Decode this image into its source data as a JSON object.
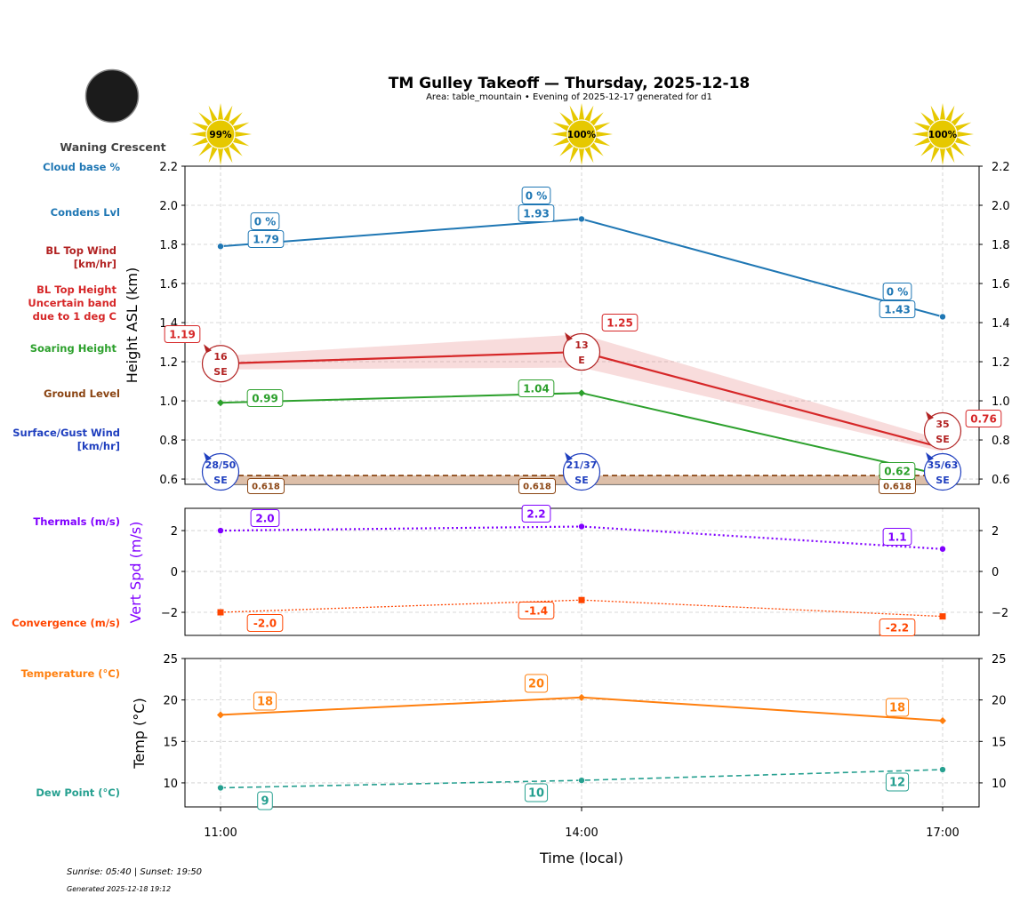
{
  "header": {
    "title": "TM Gulley Takeoff — Thursday, 2025-12-18",
    "subtitle": "Area: table_mountain • Evening of 2025-12-17 generated for d1"
  },
  "moon": {
    "phase": "Waning Crescent",
    "icon": "moon-icon"
  },
  "sun": {
    "icon": "sun-icon",
    "values": [
      "99%",
      "100%",
      "100%"
    ],
    "color": "#e6c800"
  },
  "side_labels": {
    "cloud_base": "Cloud base %",
    "condens": "Condens Lvl",
    "bl_wind": [
      "BL Top Wind",
      "[km/hr]"
    ],
    "bl_height": [
      "BL Top Height",
      "Uncertain band",
      "due to 1 deg C"
    ],
    "soaring": "Soaring Height",
    "ground": "Ground Level",
    "surface_wind": [
      "Surface/Gust Wind",
      "[km/hr]"
    ],
    "thermals": "Thermals (m/s)",
    "convergence": "Convergence (m/s)",
    "temperature": "Temperature (°C)",
    "dew_point": "Dew Point (°C)"
  },
  "footer": {
    "sun_times": "Sunrise: 05:40 | Sunset: 19:50",
    "generated": "Generated 2025-12-18 19:12"
  },
  "chart_data": [
    {
      "type": "line",
      "ylabel": "Height ASL (km)",
      "ylim": [
        0.573,
        2.2
      ],
      "yticks": [
        "0.6",
        "0.8",
        "1.0",
        "1.2",
        "1.4",
        "1.6",
        "1.8",
        "2.0",
        "2.2"
      ],
      "grid": true,
      "x": [
        "11:00",
        "14:00",
        "17:00"
      ],
      "series": [
        {
          "key": "condens",
          "values": [
            1.79,
            1.93,
            1.43
          ],
          "labels": [
            "1.79",
            "1.93",
            "1.43"
          ],
          "cloud_base_pct": [
            "0 %",
            "0 %",
            "0 %"
          ],
          "color": "#1f77b4"
        },
        {
          "key": "bl_top",
          "values": [
            1.19,
            1.25,
            0.76
          ],
          "labels": [
            "1.19",
            "1.25",
            "0.76"
          ],
          "band_low": [
            1.16,
            1.17,
            0.74
          ],
          "band_high": [
            1.23,
            1.34,
            0.8
          ],
          "color": "#d62728"
        },
        {
          "key": "soaring",
          "values": [
            0.99,
            1.04,
            0.62
          ],
          "labels": [
            "0.99",
            "1.04",
            "0.62"
          ],
          "color": "#2ca02c"
        },
        {
          "key": "ground",
          "values": [
            0.618,
            0.618,
            0.618
          ],
          "labels": [
            "0.618",
            "0.618",
            "0.618"
          ],
          "color": "#8b4513"
        }
      ],
      "bl_wind": [
        {
          "speed": "16",
          "dir": "SE"
        },
        {
          "speed": "13",
          "dir": "E"
        },
        {
          "speed": "35",
          "dir": "SE"
        }
      ],
      "surface_wind": [
        {
          "speed": "28/50",
          "dir": "SE"
        },
        {
          "speed": "21/37",
          "dir": "SE"
        },
        {
          "speed": "35/63",
          "dir": "SE"
        }
      ]
    },
    {
      "type": "line",
      "ylabel": "Vert Spd (m/s)",
      "ylim": [
        -3.13,
        3.09
      ],
      "yticks": [
        "−2",
        "0",
        "2"
      ],
      "grid": true,
      "x": [
        "11:00",
        "14:00",
        "17:00"
      ],
      "series": [
        {
          "key": "thermals",
          "values": [
            2.0,
            2.2,
            1.1
          ],
          "labels": [
            "2.0",
            "2.2",
            "1.1"
          ],
          "color": "#8000ff"
        },
        {
          "key": "convergence",
          "values": [
            -2.0,
            -1.4,
            -2.2
          ],
          "labels": [
            "-2.0",
            "-1.4",
            "-2.2"
          ],
          "color": "#ff4500"
        }
      ]
    },
    {
      "type": "line",
      "ylabel": "Temp (°C)",
      "xlabel": "Time (local)",
      "ylim": [
        7.1,
        25
      ],
      "yticks": [
        "10",
        "15",
        "20",
        "25"
      ],
      "grid": true,
      "x": [
        "11:00",
        "14:00",
        "17:00"
      ],
      "series": [
        {
          "key": "temperature",
          "values": [
            18.2,
            20.3,
            17.5
          ],
          "labels": [
            "18",
            "20",
            "18"
          ],
          "color": "#ff7f0e"
        },
        {
          "key": "dew_point",
          "values": [
            9.4,
            10.3,
            11.6
          ],
          "labels": [
            "9",
            "10",
            "12"
          ],
          "color": "#26a090"
        }
      ]
    }
  ]
}
